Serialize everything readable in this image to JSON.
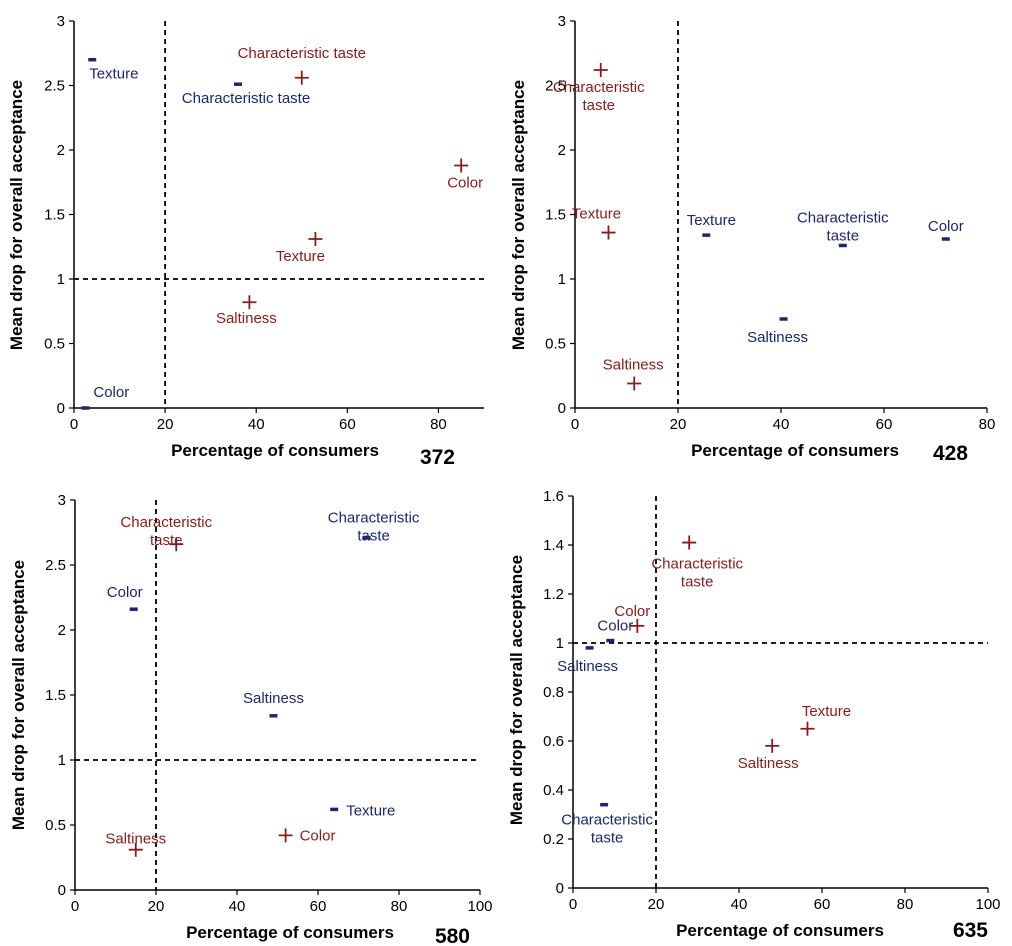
{
  "colors": {
    "red_series": "#8b1a1a",
    "blue_series": "#1c2673",
    "axis": "#000000"
  },
  "chart_data": [
    {
      "type": "scatter",
      "panel_id": "372",
      "xlabel": "Percentage of consumers",
      "ylabel": "Mean drop for overall acceptance",
      "xlim": [
        0,
        90
      ],
      "ylim": [
        0,
        3
      ],
      "xticks": [
        "0",
        "20",
        "40",
        "60",
        "80"
      ],
      "yticks": [
        "0",
        "0.5",
        "1",
        "1.5",
        "2",
        "2.5",
        "3"
      ],
      "ref_x": 20,
      "ref_y": 1,
      "series": [
        {
          "marker": "plus",
          "points": [
            {
              "label": "Characteristic taste",
              "x": 50,
              "y": 2.56
            },
            {
              "label": "Color",
              "x": 85,
              "y": 1.88
            },
            {
              "label": "Texture",
              "x": 53,
              "y": 1.31
            },
            {
              "label": "Saltiness",
              "x": 38.5,
              "y": 0.82
            }
          ]
        },
        {
          "marker": "dash",
          "points": [
            {
              "label": "Texture",
              "x": 4,
              "y": 2.7
            },
            {
              "label": "Characteristic taste",
              "x": 36,
              "y": 2.51
            },
            {
              "label": "Color",
              "x": 2.5,
              "y": 0
            }
          ]
        }
      ]
    },
    {
      "type": "scatter",
      "panel_id": "428",
      "xlabel": "Percentage of consumers",
      "ylabel": "Mean drop for overall acceptance",
      "xlim": [
        0,
        80
      ],
      "ylim": [
        0,
        3
      ],
      "xticks": [
        "0",
        "20",
        "40",
        "60",
        "80"
      ],
      "yticks": [
        "0",
        "0.5",
        "1",
        "1.5",
        "2",
        "2.5",
        "3"
      ],
      "ref_x": 20,
      "ref_y": null,
      "series": [
        {
          "marker": "plus",
          "points": [
            {
              "label": [
                "Characteristic",
                "taste"
              ],
              "x": 5,
              "y": 2.62
            },
            {
              "label": "Texture",
              "x": 6.5,
              "y": 1.36
            },
            {
              "label": "Saltiness",
              "x": 11.5,
              "y": 0.19
            }
          ]
        },
        {
          "marker": "dash",
          "points": [
            {
              "label": "Texture",
              "x": 25.5,
              "y": 1.34
            },
            {
              "label": [
                "Characteristic",
                "taste"
              ],
              "x": 52,
              "y": 1.26
            },
            {
              "label": "Color",
              "x": 72,
              "y": 1.31
            },
            {
              "label": "Saltiness",
              "x": 40.5,
              "y": 0.69
            }
          ]
        }
      ]
    },
    {
      "type": "scatter",
      "panel_id": "580",
      "xlabel": "Percentage of consumers",
      "ylabel": "Mean drop for overall acceptance",
      "xlim": [
        0,
        100
      ],
      "ylim": [
        0,
        3
      ],
      "xticks": [
        "0",
        "20",
        "40",
        "60",
        "80",
        "100"
      ],
      "yticks": [
        "0",
        "0.5",
        "1",
        "1.5",
        "2",
        "2.5",
        "3"
      ],
      "ref_x": 20,
      "ref_y": 1,
      "series": [
        {
          "marker": "plus",
          "points": [
            {
              "label": [
                "Characteristic",
                "taste"
              ],
              "x": 25,
              "y": 2.66
            },
            {
              "label": "Saltiness",
              "x": 15,
              "y": 0.31
            },
            {
              "label": "Color",
              "x": 52,
              "y": 0.42
            }
          ]
        },
        {
          "marker": "dash",
          "points": [
            {
              "label": [
                "Characteristic",
                "taste"
              ],
              "x": 72,
              "y": 2.71
            },
            {
              "label": "Color",
              "x": 14.5,
              "y": 2.16
            },
            {
              "label": "Saltiness",
              "x": 49,
              "y": 1.34
            },
            {
              "label": "Texture",
              "x": 64,
              "y": 0.62
            }
          ]
        }
      ]
    },
    {
      "type": "scatter",
      "panel_id": "635",
      "xlabel": "Percentage of consumers",
      "ylabel": "Mean drop for overall acceptance",
      "xlim": [
        0,
        100
      ],
      "ylim": [
        0,
        1.6
      ],
      "xticks": [
        "0",
        "20",
        "40",
        "60",
        "80",
        "100"
      ],
      "yticks": [
        "0",
        "0.2",
        "0.4",
        "0.6",
        "0.8",
        "1",
        "1.2",
        "1.4",
        "1.6"
      ],
      "ref_x": 20,
      "ref_y": 1,
      "series": [
        {
          "marker": "plus",
          "points": [
            {
              "label": [
                "Characteristic",
                "taste"
              ],
              "x": 28,
              "y": 1.41
            },
            {
              "label": "Color",
              "x": 15.5,
              "y": 1.07
            },
            {
              "label": "Texture",
              "x": 56.5,
              "y": 0.65
            },
            {
              "label": "Saltiness",
              "x": 48,
              "y": 0.58
            }
          ]
        },
        {
          "marker": "dash",
          "points": [
            {
              "label": "Color",
              "x": 9,
              "y": 1.01
            },
            {
              "label": "Saltiness",
              "x": 4,
              "y": 0.98
            },
            {
              "label": [
                "Characteristic",
                "taste"
              ],
              "x": 7.5,
              "y": 0.34
            }
          ]
        }
      ]
    }
  ]
}
